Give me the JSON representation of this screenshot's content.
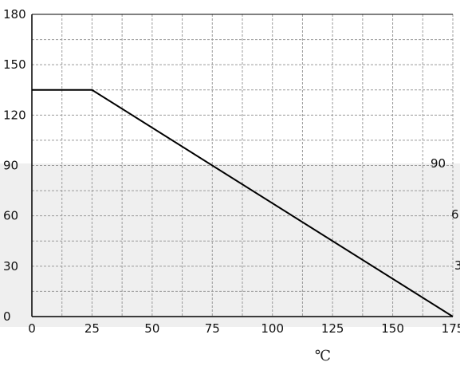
{
  "chart_data": {
    "type": "line",
    "title": "",
    "xlabel": "℃",
    "ylabel": "",
    "x_ticks": [
      "0",
      "25",
      "50",
      "75",
      "100",
      "125",
      "150",
      "175"
    ],
    "y_ticks": [
      "0",
      "30",
      "60",
      "90",
      "120",
      "150",
      "180"
    ],
    "xlim": [
      0,
      175
    ],
    "ylim": [
      0,
      180
    ],
    "grid": true,
    "series": [
      {
        "x": [
          0,
          25,
          175
        ],
        "y": [
          135,
          135,
          0
        ],
        "color": "#000000"
      }
    ],
    "extra_marks": [
      "6",
      "3",
      "90"
    ]
  }
}
